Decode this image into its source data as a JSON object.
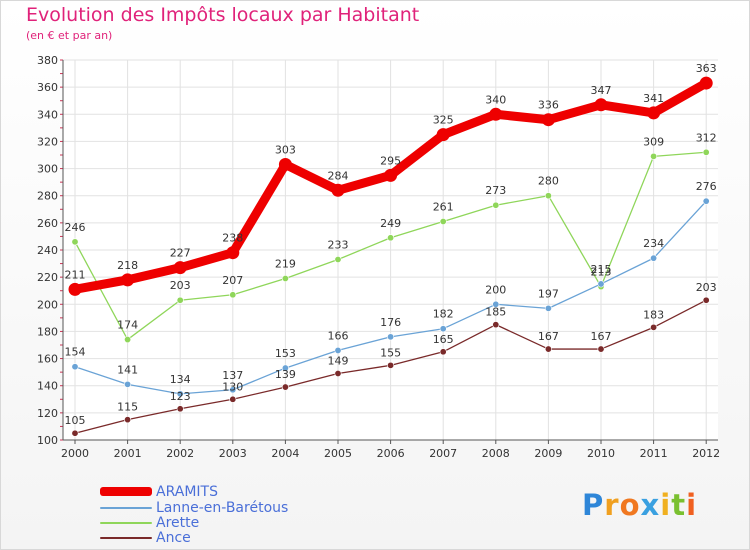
{
  "header": {
    "title": "Evolution des Impôts locaux par Habitant",
    "subtitle": "(en € et par an)"
  },
  "chart_data": {
    "type": "line",
    "title": "Evolution des Impôts locaux par Habitant",
    "subtitle": "(en € et par an)",
    "x": [
      "2000",
      "2001",
      "2002",
      "2003",
      "2004",
      "2005",
      "2006",
      "2007",
      "2008",
      "2009",
      "2010",
      "2011",
      "2012"
    ],
    "y_ticks": [
      "100",
      "120",
      "140",
      "160",
      "180",
      "200",
      "220",
      "240",
      "260",
      "280",
      "300",
      "320",
      "340",
      "360",
      "380"
    ],
    "ylim": [
      100,
      380
    ],
    "grid": true,
    "legend_position": "bottom-left",
    "series": [
      {
        "name": "ARAMITS",
        "color": "#ee0000",
        "values": [
          211,
          218,
          227,
          238,
          303,
          284,
          295,
          325,
          340,
          336,
          347,
          341,
          363
        ]
      },
      {
        "name": "Lanne-en-Barétous",
        "color": "#6aa3d6",
        "values": [
          154,
          141,
          134,
          137,
          153,
          166,
          176,
          182,
          200,
          197,
          215,
          234,
          276
        ]
      },
      {
        "name": "Arette",
        "color": "#8fd65a",
        "values": [
          246,
          174,
          203,
          207,
          219,
          233,
          249,
          261,
          273,
          280,
          213,
          309,
          312
        ]
      },
      {
        "name": "Ance",
        "color": "#7a2a2a",
        "values": [
          105,
          115,
          123,
          130,
          139,
          149,
          155,
          165,
          185,
          167,
          167,
          183,
          203
        ]
      }
    ],
    "value_labels": [
      [
        "211",
        "218",
        "227",
        "238",
        "303",
        "284",
        "295",
        "325",
        "340",
        "336",
        "347",
        "341",
        "363"
      ],
      [
        "154",
        "141",
        "134",
        "137",
        "153",
        "166",
        "176",
        "182",
        "200",
        "197",
        "215",
        "234",
        "276"
      ],
      [
        "246",
        "174",
        "203",
        "207",
        "219",
        "233",
        "249",
        "261",
        "273",
        "280",
        "213",
        "309",
        "312"
      ],
      [
        "105",
        "115",
        "123",
        "130",
        "139",
        "149",
        "155",
        "165",
        "185",
        "167",
        "167",
        "183",
        "203"
      ]
    ]
  },
  "logo": {
    "text": "Proxiti",
    "letters": [
      "P",
      "r",
      "o",
      "x",
      "i",
      "t",
      "i"
    ],
    "colors": [
      "#2e86d8",
      "#f0a020",
      "#f07820",
      "#3aa0e0",
      "#f0b020",
      "#7ac030",
      "#f06020"
    ]
  }
}
